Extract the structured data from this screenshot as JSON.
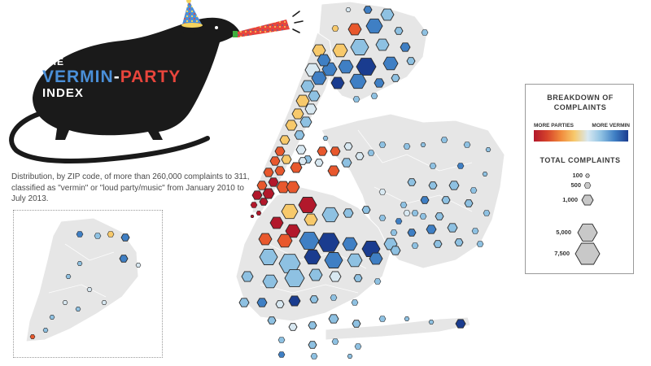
{
  "title": {
    "the": "THE",
    "vermin": "VERMIN",
    "dash": "-",
    "party": "PARTY",
    "index": "INDEX"
  },
  "description": "Distribution, by ZIP code, of more than 260,000 complaints to 311, classified as \"vermin\" or \"loud party/music\" from January 2010 to July 2013.",
  "legend": {
    "breakdown_title": "BREAKDOWN OF COMPLAINTS",
    "more_parties": "MORE PARTIES",
    "more_vermin": "MORE VERMIN",
    "total_title": "TOTAL COMPLAINTS",
    "size_labels": [
      "100",
      "500",
      "1,000",
      "5,000",
      "7,500"
    ]
  },
  "colors": {
    "parties_dark": "#b2182b",
    "parties": "#e8582d",
    "party_light": "#f7c96b",
    "neutral": "#d8e8f1",
    "vermin_light": "#8ec1e2",
    "vermin": "#3f7fc4",
    "vermin_dark": "#1a3c8f",
    "land": "#e6e6e6",
    "rat": "#1a1a1a"
  },
  "icons": [
    "rat-silhouette",
    "party-hat-icon",
    "party-horn-icon"
  ]
}
